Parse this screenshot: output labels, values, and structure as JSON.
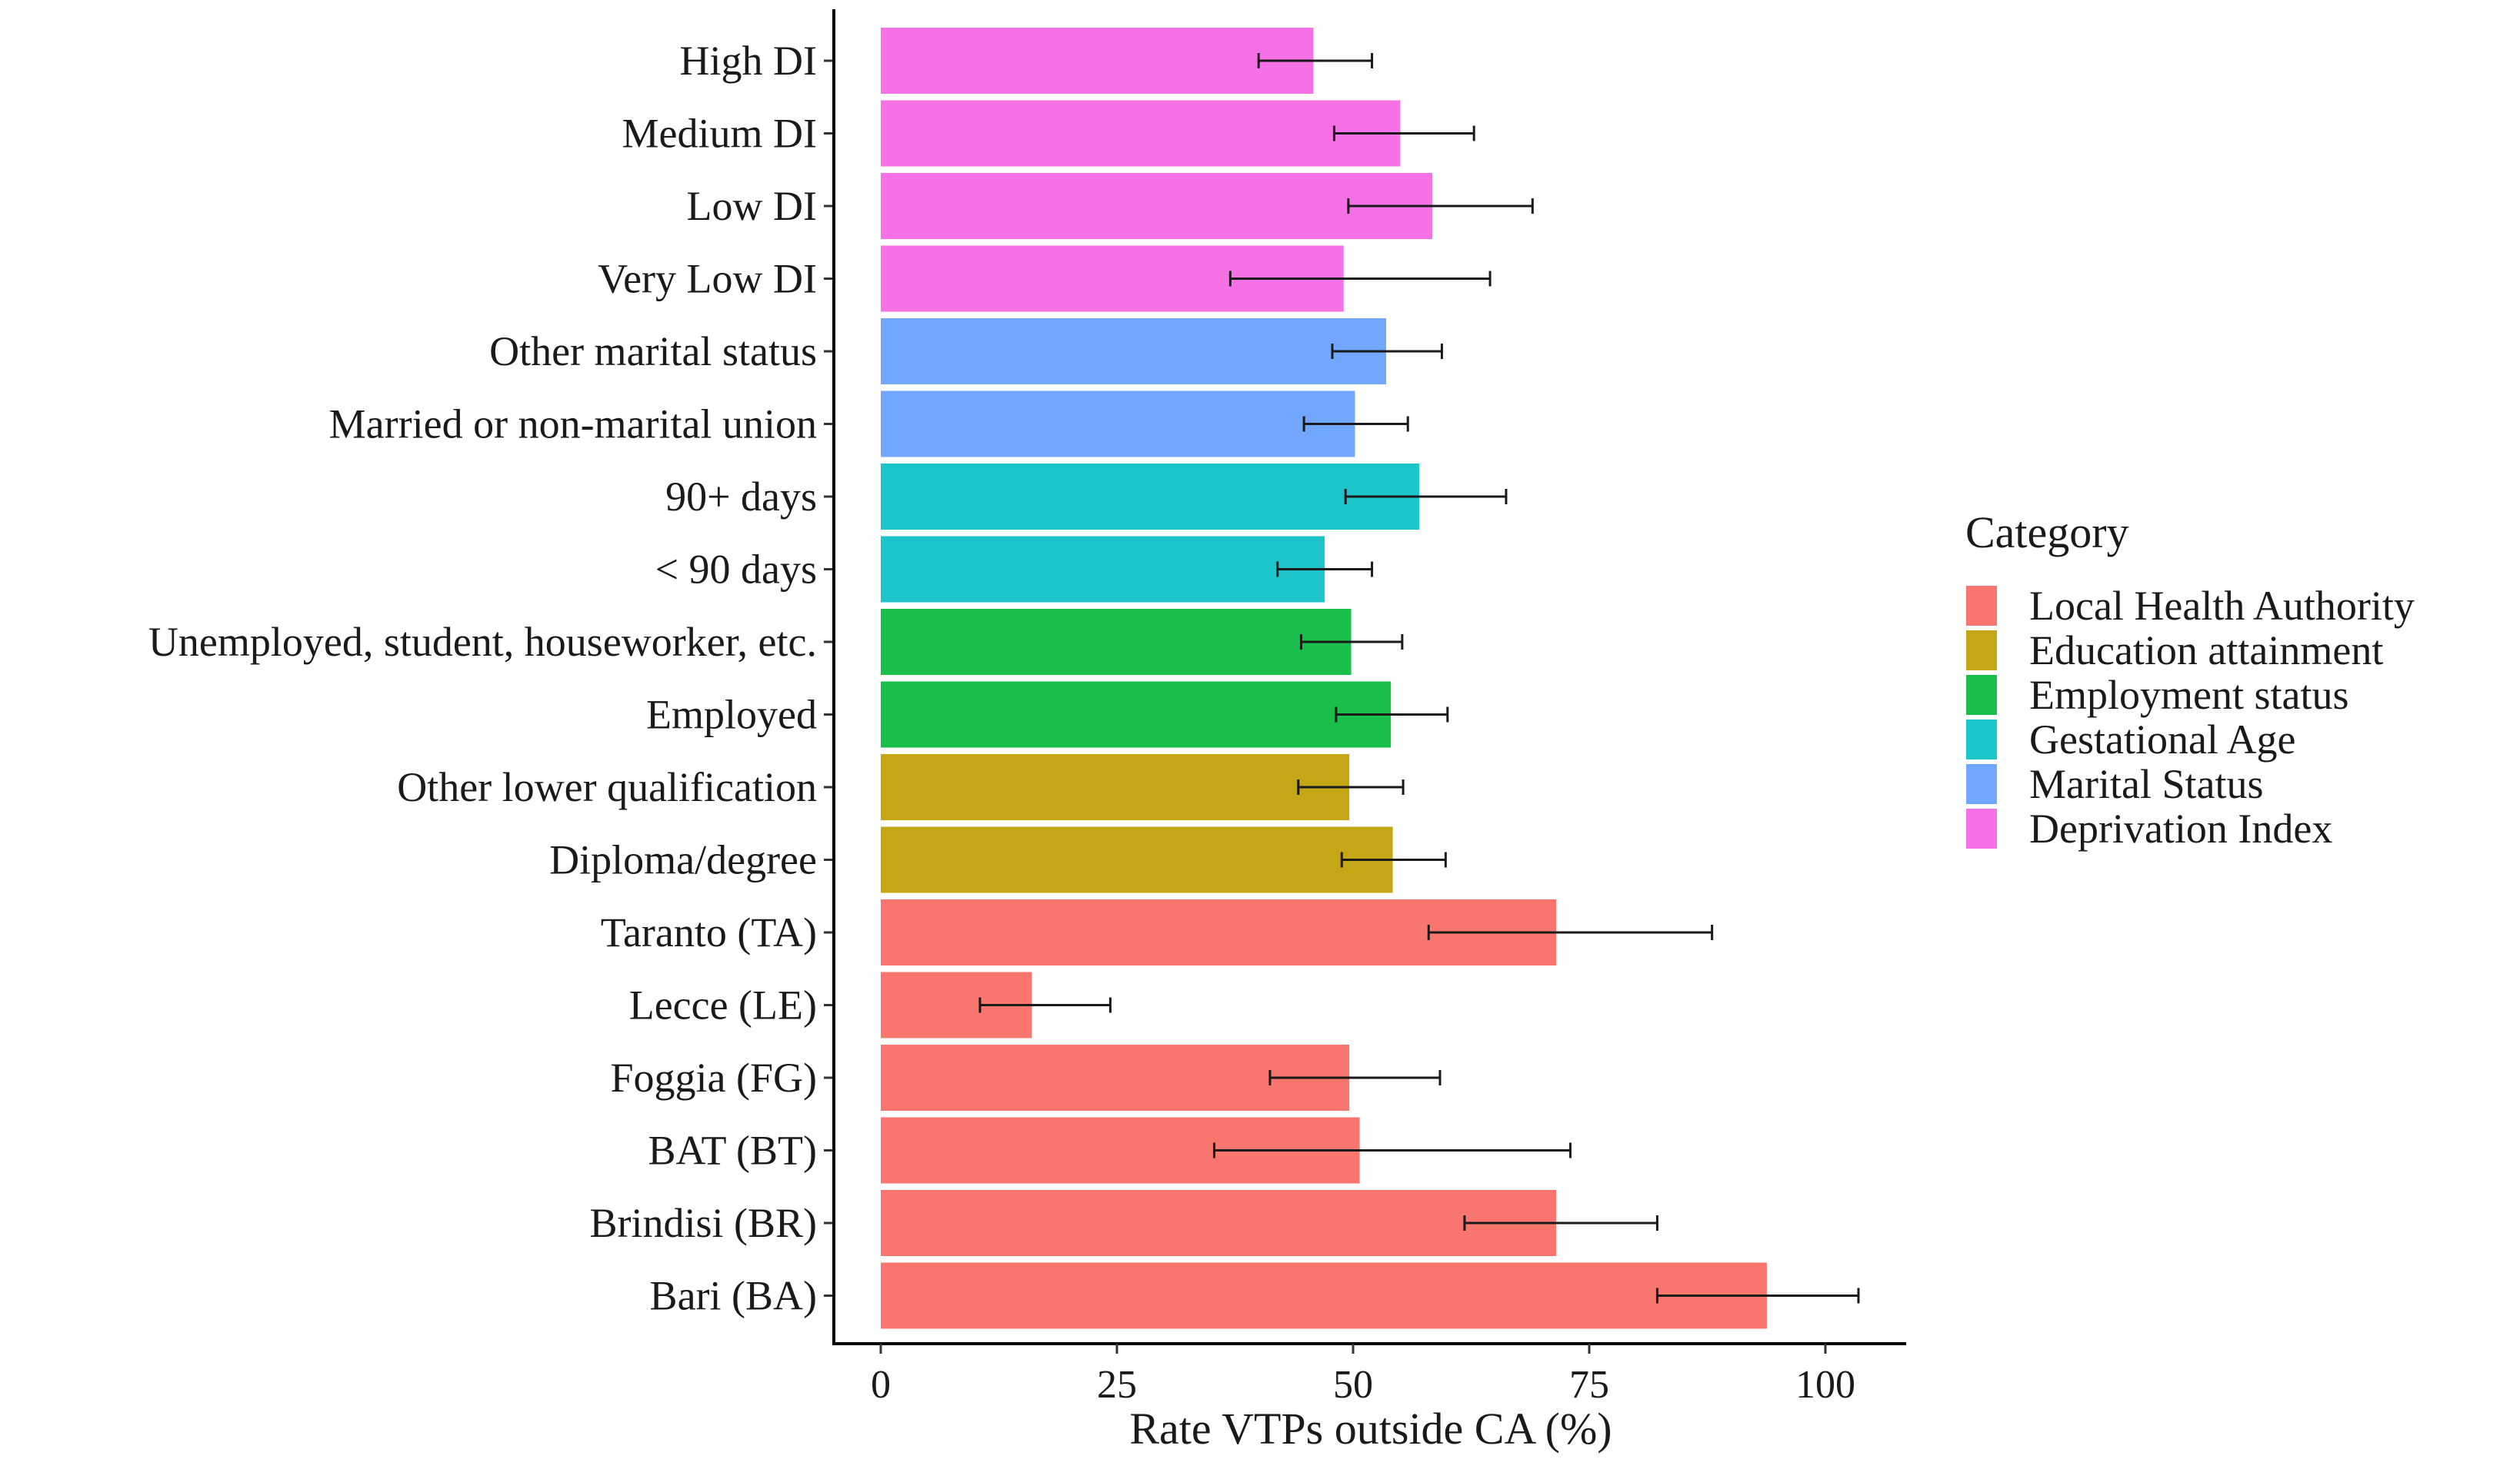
{
  "chart_data": {
    "type": "bar",
    "orientation": "horizontal",
    "title": "",
    "xlabel": "Rate VTPs outside CA (%)",
    "ylabel": "",
    "xlim": [
      -5,
      108
    ],
    "x_ticks": [
      0,
      25,
      50,
      75,
      100
    ],
    "grid": false,
    "legend": {
      "title": "Category",
      "placement": "right",
      "entries": [
        {
          "name": "Local Health Authority",
          "color": "#F8766D"
        },
        {
          "name": "Education attainment",
          "color": "#C4A616"
        },
        {
          "name": "Employment status",
          "color": "#1ABF4B"
        },
        {
          "name": "Gestational Age",
          "color": "#1DC5CB"
        },
        {
          "name": "Marital Status",
          "color": "#72A7FF"
        },
        {
          "name": "Deprivation Index",
          "color": "#F671E6"
        }
      ]
    },
    "bars": [
      {
        "label": "High DI",
        "category": "Deprivation Index",
        "value": 45.8,
        "ci_low": 40.0,
        "ci_high": 52.0
      },
      {
        "label": "Medium DI",
        "category": "Deprivation Index",
        "value": 55.0,
        "ci_low": 48.0,
        "ci_high": 62.8
      },
      {
        "label": "Low DI",
        "category": "Deprivation Index",
        "value": 58.4,
        "ci_low": 49.5,
        "ci_high": 69.0
      },
      {
        "label": "Very Low DI",
        "category": "Deprivation Index",
        "value": 49.0,
        "ci_low": 37.0,
        "ci_high": 64.5
      },
      {
        "label": "Other marital status",
        "category": "Marital Status",
        "value": 53.5,
        "ci_low": 47.8,
        "ci_high": 59.4
      },
      {
        "label": "Married or non-marital union",
        "category": "Marital Status",
        "value": 50.2,
        "ci_low": 44.8,
        "ci_high": 55.8
      },
      {
        "label": "90+ days",
        "category": "Gestational Age",
        "value": 57.0,
        "ci_low": 49.2,
        "ci_high": 66.2
      },
      {
        "label": "< 90 days",
        "category": "Gestational Age",
        "value": 47.0,
        "ci_low": 42.0,
        "ci_high": 52.0
      },
      {
        "label": "Unemployed, student, houseworker, etc.",
        "category": "Employment status",
        "value": 49.8,
        "ci_low": 44.5,
        "ci_high": 55.2
      },
      {
        "label": "Employed",
        "category": "Employment status",
        "value": 54.0,
        "ci_low": 48.2,
        "ci_high": 60.0
      },
      {
        "label": "Other lower qualification",
        "category": "Education attainment",
        "value": 49.6,
        "ci_low": 44.2,
        "ci_high": 55.3
      },
      {
        "label": "Diploma/degree",
        "category": "Education attainment",
        "value": 54.2,
        "ci_low": 48.8,
        "ci_high": 59.8
      },
      {
        "label": "Taranto (TA)",
        "category": "Local Health Authority",
        "value": 71.5,
        "ci_low": 58.0,
        "ci_high": 88.0
      },
      {
        "label": "Lecce (LE)",
        "category": "Local Health Authority",
        "value": 16.0,
        "ci_low": 10.5,
        "ci_high": 24.3
      },
      {
        "label": "Foggia (FG)",
        "category": "Local Health Authority",
        "value": 49.6,
        "ci_low": 41.2,
        "ci_high": 59.2
      },
      {
        "label": "BAT (BT)",
        "category": "Local Health Authority",
        "value": 50.7,
        "ci_low": 35.3,
        "ci_high": 73.0
      },
      {
        "label": "Brindisi (BR)",
        "category": "Local Health Authority",
        "value": 71.5,
        "ci_low": 61.8,
        "ci_high": 82.2
      },
      {
        "label": "Bari (BA)",
        "category": "Local Health Authority",
        "value": 93.8,
        "ci_low": 82.2,
        "ci_high": 103.5
      }
    ]
  }
}
